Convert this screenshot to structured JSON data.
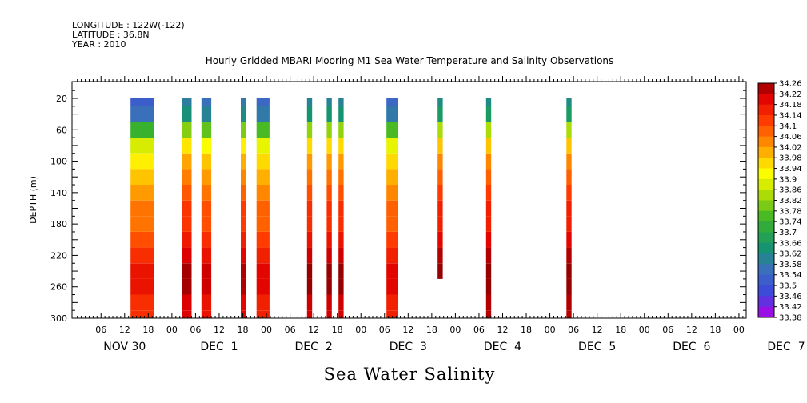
{
  "header": {
    "longitude": "LONGITUDE : 122W(-122)",
    "latitude": "LATITUDE : 36.8N",
    "year": "YEAR : 2010"
  },
  "chart_data": {
    "type": "heatmap",
    "title": "Hourly Gridded MBARI Mooring M1 Sea Water Temperature and Salinity Observations",
    "xlabel": "",
    "ylabel": "DEPTH (m)",
    "bottom_title": "Sea Water Salinity",
    "x_hour_range": [
      0,
      168
    ],
    "ylim": [
      300,
      0
    ],
    "y_ticks": [
      20,
      60,
      100,
      140,
      180,
      220,
      260,
      300
    ],
    "x_tick_labels": [
      "06",
      "12",
      "18",
      "00",
      "06",
      "12",
      "18",
      "00",
      "06",
      "12",
      "18",
      "00",
      "06",
      "12",
      "18",
      "00",
      "06",
      "12",
      "18",
      "00",
      "06",
      "12",
      "18",
      "00",
      "06",
      "12",
      "18",
      "00",
      "06",
      "12",
      "18",
      "00",
      "06"
    ],
    "x_tick_hours": [
      6,
      12,
      18,
      24,
      30,
      36,
      42,
      48,
      54,
      60,
      66,
      72,
      78,
      84,
      90,
      96,
      102,
      108,
      114,
      120,
      126,
      132,
      138,
      144,
      150,
      156,
      162,
      168,
      174,
      180,
      186,
      192,
      198
    ],
    "day_labels": [
      {
        "label": "NOV 30",
        "hour": 12
      },
      {
        "label": "DEC  1",
        "hour": 36
      },
      {
        "label": "DEC  2",
        "hour": 60
      },
      {
        "label": "DEC  3",
        "hour": 84
      },
      {
        "label": "DEC  4",
        "hour": 108
      },
      {
        "label": "DEC  5",
        "hour": 132
      },
      {
        "label": "DEC  6",
        "hour": 156
      },
      {
        "label": "DEC  7",
        "hour": 180
      }
    ],
    "depth_profile": [
      {
        "depth": 20,
        "value": 33.54
      },
      {
        "depth": 40,
        "value": 33.58
      },
      {
        "depth": 60,
        "value": 33.76
      },
      {
        "depth": 80,
        "value": 33.9
      },
      {
        "depth": 100,
        "value": 33.96
      },
      {
        "depth": 120,
        "value": 34.0
      },
      {
        "depth": 140,
        "value": 34.04
      },
      {
        "depth": 160,
        "value": 34.08
      },
      {
        "depth": 180,
        "value": 34.08
      },
      {
        "depth": 200,
        "value": 34.12
      },
      {
        "depth": 220,
        "value": 34.16
      },
      {
        "depth": 240,
        "value": 34.2
      },
      {
        "depth": 260,
        "value": 34.2
      },
      {
        "depth": 280,
        "value": 34.16
      },
      {
        "depth": 300,
        "value": 34.16
      }
    ],
    "observations": [
      {
        "start": 13.5,
        "end": 19.5,
        "top": 20,
        "bottom": 300,
        "shift": -0.02
      },
      {
        "start": 26.5,
        "end": 29,
        "top": 20,
        "bottom": 300,
        "shift": 0.05
      },
      {
        "start": 31.5,
        "end": 34,
        "top": 20,
        "bottom": 300,
        "shift": 0.02
      },
      {
        "start": 41.5,
        "end": 42.8,
        "top": 20,
        "bottom": 300,
        "shift": 0.04
      },
      {
        "start": 45.5,
        "end": 48.8,
        "top": 20,
        "bottom": 300,
        "shift": 0.0
      },
      {
        "start": 58.3,
        "end": 59.6,
        "top": 20,
        "bottom": 300,
        "shift": 0.06
      },
      {
        "start": 63.3,
        "end": 64.6,
        "top": 20,
        "bottom": 300,
        "shift": 0.06
      },
      {
        "start": 66.3,
        "end": 67.6,
        "top": 20,
        "bottom": 300,
        "shift": 0.06
      },
      {
        "start": 78.5,
        "end": 81.5,
        "top": 20,
        "bottom": 300,
        "shift": 0.0
      },
      {
        "start": 91.5,
        "end": 92.8,
        "top": 20,
        "bottom": 250,
        "shift": 0.08
      },
      {
        "start": 103.8,
        "end": 105.1,
        "top": 20,
        "bottom": 300,
        "shift": 0.08
      },
      {
        "start": 124.2,
        "end": 125.5,
        "top": 20,
        "bottom": 300,
        "shift": 0.08
      }
    ],
    "colorbar_levels": [
      "34.26",
      "34.22",
      "34.18",
      "34.14",
      "34.1",
      "34.06",
      "34.02",
      "33.98",
      "33.94",
      "33.9",
      "33.86",
      "33.82",
      "33.78",
      "33.74",
      "33.7",
      "33.66",
      "33.62",
      "33.58",
      "33.54",
      "33.5",
      "33.46",
      "33.42",
      "33.38"
    ],
    "colorbar_min": 33.38,
    "colorbar_max": 34.26
  }
}
